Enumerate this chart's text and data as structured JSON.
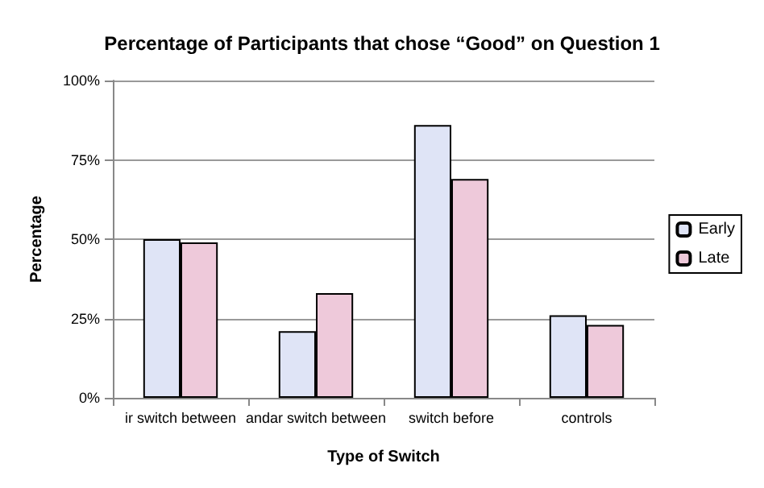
{
  "chart_data": {
    "type": "bar",
    "title": "Percentage of Participants that chose “Good” on Question 1",
    "xlabel": "Type of Switch",
    "ylabel": "Percentage",
    "categories": [
      "ir switch between",
      "andar switch between",
      "switch before",
      "controls"
    ],
    "series": [
      {
        "name": "Early",
        "color": "#dfe4f6",
        "values": [
          50,
          21,
          86,
          26
        ]
      },
      {
        "name": "Late",
        "color": "#eec9da",
        "values": [
          49,
          33,
          69,
          23
        ]
      }
    ],
    "ylim": [
      0,
      100
    ],
    "yticks": [
      {
        "value": 0,
        "label": "0%"
      },
      {
        "value": 25,
        "label": "25%"
      },
      {
        "value": 50,
        "label": "50%"
      },
      {
        "value": 75,
        "label": "75%"
      },
      {
        "value": 100,
        "label": "100%"
      }
    ],
    "grid": "y",
    "legend": "right"
  }
}
